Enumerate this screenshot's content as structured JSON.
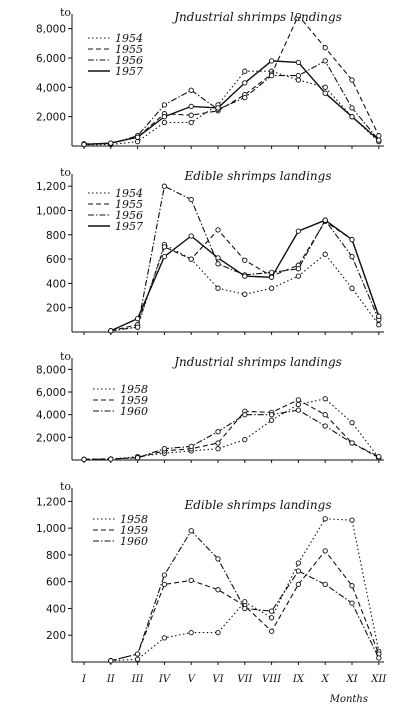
{
  "chart_data": [
    {
      "type": "line",
      "title": "Jndustrial shrimps landings",
      "ylabel": "to",
      "y_ticks": [
        2000,
        4000,
        6000,
        8000
      ],
      "y_tick_labels": [
        "2,000",
        "4,000",
        "6,000",
        "8,000"
      ],
      "ylim": [
        0,
        9000
      ],
      "x": [
        1,
        2,
        3,
        4,
        5,
        6,
        7,
        8,
        9,
        10,
        11,
        12
      ],
      "series": [
        {
          "name": "1954",
          "dash": "1.5,2.5",
          "values": [
            80,
            100,
            300,
            1600,
            1600,
            2800,
            5100,
            5100,
            4500,
            4000,
            2000,
            300
          ]
        },
        {
          "name": "1955",
          "dash": "5,3",
          "values": [
            100,
            200,
            600,
            2200,
            2100,
            2400,
            3500,
            4900,
            8900,
            6700,
            4500,
            700
          ]
        },
        {
          "name": "1956",
          "dash": "6,2,1.5,2",
          "values": [
            150,
            150,
            700,
            2800,
            3800,
            2500,
            3300,
            4800,
            4800,
            5800,
            2600,
            400
          ]
        },
        {
          "name": "1957",
          "dash": "",
          "values": [
            100,
            200,
            600,
            2000,
            2700,
            2600,
            4300,
            5800,
            5700,
            3600,
            2000,
            400
          ]
        }
      ]
    },
    {
      "type": "line",
      "title": "Edible shrimps landings",
      "ylabel": "to",
      "y_ticks": [
        200,
        400,
        600,
        800,
        1000,
        1200
      ],
      "y_tick_labels": [
        "200",
        "400",
        "600",
        "800",
        "1,000",
        "1,200"
      ],
      "ylim": [
        0,
        1300
      ],
      "x": [
        1,
        2,
        3,
        4,
        5,
        6,
        7,
        8,
        9,
        10,
        11,
        12
      ],
      "series": [
        {
          "name": "1954",
          "dash": "1.5,2.5",
          "values": [
            null,
            10,
            40,
            720,
            600,
            360,
            310,
            360,
            460,
            640,
            360,
            60
          ]
        },
        {
          "name": "1955",
          "dash": "5,3",
          "values": [
            null,
            10,
            60,
            700,
            600,
            840,
            590,
            460,
            550,
            910,
            760,
            120
          ]
        },
        {
          "name": "1956",
          "dash": "6,2,1.5,2",
          "values": [
            null,
            10,
            40,
            1200,
            1090,
            560,
            470,
            490,
            520,
            920,
            620,
            100
          ]
        },
        {
          "name": "1957",
          "dash": "",
          "values": [
            null,
            10,
            110,
            620,
            790,
            610,
            460,
            450,
            830,
            920,
            760,
            130
          ]
        }
      ]
    },
    {
      "type": "line",
      "title": "Jndustrial shrimps landings",
      "ylabel": "to",
      "y_ticks": [
        2000,
        4000,
        6000,
        8000
      ],
      "y_tick_labels": [
        "2,000",
        "4,000",
        "6,000",
        "8,000"
      ],
      "ylim": [
        0,
        9000
      ],
      "x": [
        1,
        2,
        3,
        4,
        5,
        6,
        7,
        8,
        9,
        10,
        11,
        12
      ],
      "series": [
        {
          "name": "1958",
          "dash": "1.5,2.5",
          "values": [
            50,
            80,
            300,
            600,
            800,
            1000,
            1800,
            3500,
            4900,
            5400,
            3300,
            200
          ]
        },
        {
          "name": "1959",
          "dash": "5,3",
          "values": [
            60,
            100,
            200,
            800,
            1000,
            1500,
            4300,
            4200,
            5300,
            4000,
            1500,
            200
          ]
        },
        {
          "name": "1960",
          "dash": "6,2,1.5,2",
          "values": [
            50,
            80,
            200,
            1000,
            1200,
            2500,
            4000,
            4000,
            4400,
            3000,
            1500,
            300
          ]
        }
      ]
    },
    {
      "type": "line",
      "title": "Edible shrimps landings",
      "ylabel": "to",
      "y_ticks": [
        200,
        400,
        600,
        800,
        1000,
        1200
      ],
      "y_tick_labels": [
        "200",
        "400",
        "600",
        "800",
        "1,000",
        "1,200"
      ],
      "ylim": [
        0,
        1300
      ],
      "x": [
        1,
        2,
        3,
        4,
        5,
        6,
        7,
        8,
        9,
        10,
        11,
        12
      ],
      "series": [
        {
          "name": "1958",
          "dash": "1.5,2.5",
          "values": [
            null,
            10,
            20,
            180,
            220,
            220,
            450,
            330,
            740,
            1070,
            1060,
            80
          ]
        },
        {
          "name": "1959",
          "dash": "5,3",
          "values": [
            null,
            10,
            60,
            580,
            610,
            540,
            420,
            230,
            580,
            830,
            570,
            60
          ]
        },
        {
          "name": "1960",
          "dash": "6,2,1.5,2",
          "values": [
            null,
            10,
            60,
            650,
            980,
            770,
            400,
            380,
            680,
            580,
            440,
            30
          ]
        }
      ]
    }
  ],
  "x_tick_labels": [
    "I",
    "II",
    "III",
    "IV",
    "V",
    "VI",
    "VII",
    "VIII",
    "IX",
    "X",
    "XI",
    "XII"
  ],
  "x_axis_label": "Months"
}
